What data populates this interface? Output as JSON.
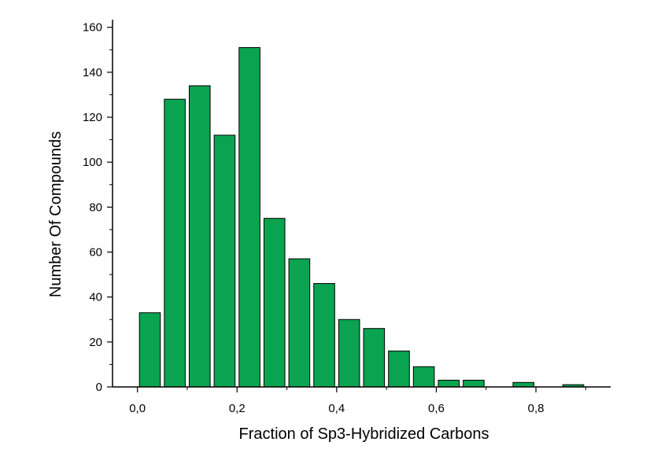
{
  "chart_data": {
    "type": "bar",
    "title": "",
    "xlabel": "Fraction of Sp3-Hybridized Carbons",
    "ylabel": "Number Of Compounds",
    "x": [
      0.025,
      0.075,
      0.125,
      0.175,
      0.225,
      0.275,
      0.325,
      0.375,
      0.425,
      0.475,
      0.525,
      0.575,
      0.625,
      0.675,
      0.725,
      0.775,
      0.825,
      0.875
    ],
    "values": [
      33,
      128,
      134,
      112,
      151,
      75,
      57,
      46,
      30,
      26,
      16,
      9,
      3,
      3,
      0,
      2,
      0,
      1
    ],
    "bar_width": 0.042,
    "xlim": [
      -0.05,
      0.95
    ],
    "ylim": [
      0,
      162
    ],
    "x_ticks": [
      0.0,
      0.2,
      0.4,
      0.6,
      0.8
    ],
    "x_tick_labels": [
      "0,0",
      "0,2",
      "0,4",
      "0,6",
      "0,8"
    ],
    "y_ticks": [
      0,
      20,
      40,
      60,
      80,
      100,
      120,
      140,
      160
    ],
    "y_tick_labels": [
      "0",
      "20",
      "40",
      "60",
      "80",
      "100",
      "120",
      "140",
      "160"
    ],
    "grid": false,
    "legend": "none",
    "colors": {
      "bar_fill": "#0aa34f",
      "bar_stroke": "#000000",
      "axis": "#000000"
    }
  }
}
